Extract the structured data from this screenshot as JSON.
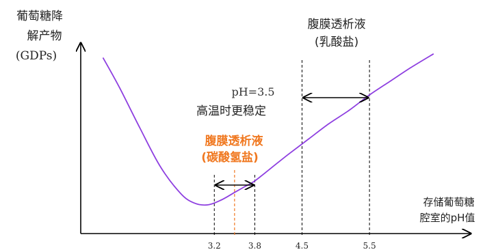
{
  "chart_data": {
    "type": "line",
    "title": "",
    "ylabel_lines": [
      "葡萄糖降",
      "解产物",
      "(GDPs)"
    ],
    "xlabel_lines": [
      "存储葡萄糖",
      "腔室的pH值"
    ],
    "xlim": [
      1.22,
      7.0
    ],
    "ylim": [
      0,
      10
    ],
    "x_ticks": [
      3.2,
      3.8,
      4.5,
      5.5
    ],
    "tick_labels": [
      "3.2",
      "3.8",
      "4.5",
      "5.5"
    ],
    "curve_color": "#8e3fe0",
    "accent_color": "#f07820",
    "series": [
      {
        "x": [
          1.55,
          1.8,
          2.1,
          2.4,
          2.7,
          2.9,
          3.1,
          3.3,
          3.5,
          3.65,
          3.8,
          4.05,
          4.3,
          4.6,
          4.9,
          5.2,
          5.5,
          5.8,
          6.1,
          6.45
        ],
        "y": [
          9.2,
          7.6,
          5.5,
          3.5,
          2.1,
          1.6,
          1.5,
          1.75,
          2.15,
          2.45,
          2.75,
          3.45,
          4.15,
          4.95,
          5.75,
          6.45,
          7.25,
          7.95,
          8.65,
          9.4
        ]
      }
    ],
    "annotations": {
      "ph35_line1": "pH=3.5",
      "ph35_line2": "高温时更稳定",
      "lactate_line1": "腹膜透析液",
      "lactate_line2": "(乳酸盐)",
      "bicarb_line1": "腹膜透析液",
      "bicarb_line2": "(碳酸氢盐)"
    },
    "ranges": {
      "lactate": [
        4.5,
        5.5
      ],
      "bicarbonate": [
        3.2,
        3.8
      ],
      "bicarbonate_optimum": 3.5
    }
  }
}
